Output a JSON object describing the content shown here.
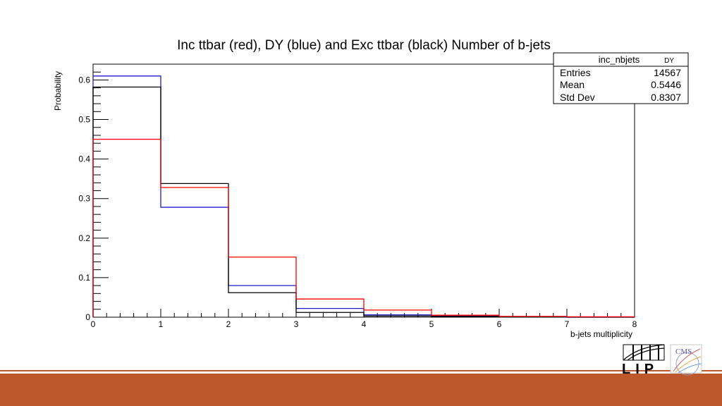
{
  "chart_data": {
    "type": "step-histogram",
    "title": "Inc ttbar (red), DY (blue) and Exc ttbar (black) Number of b-jets",
    "xlabel": "b-jets multiplicity",
    "ylabel": "Probability",
    "xlim": [
      0,
      8
    ],
    "ylim": [
      0,
      0.64
    ],
    "x_ticks": [
      "0",
      "1",
      "2",
      "3",
      "4",
      "5",
      "6",
      "7",
      "8"
    ],
    "y_ticks": [
      "0",
      "0.1",
      "0.2",
      "0.3",
      "0.4",
      "0.5",
      "0.6"
    ],
    "bin_edges": [
      0,
      1,
      2,
      3,
      4,
      5,
      6,
      7,
      8
    ],
    "series": [
      {
        "color": "#1e1ec8",
        "values": [
          0.61,
          0.278,
          0.08,
          0.022,
          0.006,
          0.003,
          0.001,
          0.0
        ]
      },
      {
        "color": "#000000",
        "values": [
          0.582,
          0.338,
          0.062,
          0.012,
          0.003,
          0.002,
          0.001,
          0.0
        ]
      },
      {
        "color": "#ff0000",
        "values": [
          0.45,
          0.328,
          0.152,
          0.046,
          0.018,
          0.005,
          0.002,
          0.001
        ]
      }
    ],
    "grid": false,
    "stats_box": {
      "name": "inc_nbjets",
      "subtitle": "DY",
      "rows": [
        {
          "label": "Entries",
          "value": "14567"
        },
        {
          "label": "Mean",
          "value": "0.5446"
        },
        {
          "label": "Std Dev",
          "value": "0.8307"
        }
      ]
    }
  },
  "logos": {
    "lip": {
      "text": "LIP"
    },
    "cms": {
      "text": "CMS"
    }
  },
  "colors": {
    "accent_orange": "#bd582c",
    "axis": "#000000"
  }
}
